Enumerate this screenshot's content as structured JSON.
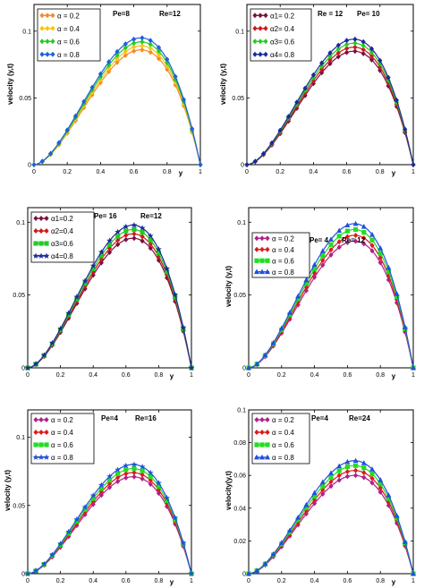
{
  "chart_data": [
    {
      "type": "line",
      "ylabel": "velocity (y,t)",
      "xlabel": "y",
      "params": [
        "Pe=8",
        "Re=12"
      ],
      "xlim": [
        0,
        1
      ],
      "ylim": [
        0,
        0.12
      ],
      "xticks": [
        0,
        0.2,
        0.4,
        0.6,
        0.8,
        1
      ],
      "xtick_labels": [
        "0",
        "0.2",
        "0.4",
        "0.6",
        "0.8",
        "1"
      ],
      "yticks": [
        0,
        0.05,
        0.1
      ],
      "ytick_labels": [
        "0",
        "0.05",
        "0.1"
      ],
      "legend_position": "top-left",
      "grid": false,
      "series": [
        {
          "name": "α = 0.2",
          "color": "#f28c28",
          "marker": "diamond",
          "peak": 0.086
        },
        {
          "name": "α = 0.4",
          "color": "#f5c518",
          "marker": "diamond",
          "peak": 0.089
        },
        {
          "name": "α = 0.6",
          "color": "#22cc22",
          "marker": "diamond",
          "peak": 0.092
        },
        {
          "name": "α = 0.8",
          "color": "#2060dd",
          "marker": "diamond",
          "peak": 0.095
        }
      ]
    },
    {
      "type": "line",
      "ylabel": "velocity (y,t)",
      "xlabel": "y",
      "params": [
        "Re = 12",
        "Pe= 10"
      ],
      "xlim": [
        0,
        1
      ],
      "ylim": [
        0,
        0.12
      ],
      "xticks": [
        0,
        0.2,
        0.4,
        0.6,
        0.8,
        1
      ],
      "xtick_labels": [
        "0",
        "0.2",
        "0.4",
        "0.6",
        "0.8",
        "1"
      ],
      "yticks": [
        0,
        0.05,
        0.1
      ],
      "ytick_labels": [
        "0",
        "0.05",
        "0.1"
      ],
      "legend_position": "top-left",
      "grid": false,
      "series": [
        {
          "name": "α1= 0.2",
          "color": "#7a1040",
          "marker": "diamond",
          "peak": 0.085
        },
        {
          "name": "α2= 0.4",
          "color": "#cc1a1a",
          "marker": "diamond",
          "peak": 0.088
        },
        {
          "name": "α3= 0.6",
          "color": "#22cc22",
          "marker": "diamond",
          "peak": 0.091
        },
        {
          "name": "α4= 0.8",
          "color": "#1a2a99",
          "marker": "diamond",
          "peak": 0.094
        }
      ]
    },
    {
      "type": "line",
      "ylabel": "",
      "xlabel": "y",
      "params": [
        "Pe= 16",
        "Re=12"
      ],
      "xlim": [
        0,
        1
      ],
      "ylim": [
        0,
        0.11
      ],
      "xticks": [
        0,
        0.2,
        0.4,
        0.6,
        0.8,
        1
      ],
      "xtick_labels": [
        "0",
        "0.2",
        "0.4",
        "0.6",
        "0.8",
        "1"
      ],
      "yticks": [
        0,
        0.05,
        0.1
      ],
      "ytick_labels": [
        "0",
        "0.05",
        "0.1"
      ],
      "legend_position": "top-left",
      "grid": false,
      "series": [
        {
          "name": "α1=0.2",
          "color": "#7a1040",
          "marker": "diamond",
          "peak": 0.089
        },
        {
          "name": "α2=0.4",
          "color": "#cc1a1a",
          "marker": "diamond",
          "peak": 0.092
        },
        {
          "name": "α3=0.6",
          "color": "#22cc22",
          "marker": "square",
          "peak": 0.095
        },
        {
          "name": "α4=0.8",
          "color": "#1a2a99",
          "marker": "star",
          "peak": 0.098
        }
      ]
    },
    {
      "type": "line",
      "ylabel": "velocity (y,t)",
      "xlabel": "y",
      "params": [
        "Pe= 4",
        "Re= 12"
      ],
      "xlim": [
        0,
        1
      ],
      "ylim": [
        0,
        0.11
      ],
      "xticks": [
        0,
        0.2,
        0.4,
        0.6,
        0.8,
        1
      ],
      "xtick_labels": [
        "0",
        "0.2",
        "0.4",
        "0.6",
        "0.8",
        "1"
      ],
      "yticks": [
        0,
        0.05,
        0.1
      ],
      "ytick_labels": [
        "0",
        "0.05",
        "0.1"
      ],
      "legend_position": "top-left",
      "grid": false,
      "series": [
        {
          "name": "α = 0.2",
          "color": "#b0208a",
          "marker": "diamond",
          "peak": 0.087
        },
        {
          "name": "α = 0.4",
          "color": "#dd1a1a",
          "marker": "diamond",
          "peak": 0.091
        },
        {
          "name": "α = 0.6",
          "color": "#22dd22",
          "marker": "square",
          "peak": 0.095
        },
        {
          "name": "α = 0.8",
          "color": "#2050e0",
          "marker": "triangle",
          "peak": 0.099
        }
      ]
    },
    {
      "type": "line",
      "ylabel": "velocity (y,t)",
      "xlabel": "y",
      "params": [
        "Pe=4",
        "Re=16"
      ],
      "xlim": [
        0,
        1
      ],
      "ylim": [
        0,
        0.12
      ],
      "xticks": [
        0,
        0.2,
        0.4,
        0.6,
        0.8,
        1
      ],
      "xtick_labels": [
        "0",
        "0.2",
        "0.4",
        "0.6",
        "0.8",
        "1"
      ],
      "yticks": [
        0,
        0.05,
        0.1
      ],
      "ytick_labels": [
        "0",
        "0.05",
        "0.1"
      ],
      "legend_position": "top-left",
      "grid": false,
      "series": [
        {
          "name": "α = 0.2",
          "color": "#b0208a",
          "marker": "diamond",
          "peak": 0.071
        },
        {
          "name": "α = 0.4",
          "color": "#dd1a1a",
          "marker": "diamond",
          "peak": 0.074
        },
        {
          "name": "α = 0.6",
          "color": "#22dd22",
          "marker": "square",
          "peak": 0.077
        },
        {
          "name": "α = 0.8",
          "color": "#2050e0",
          "marker": "star",
          "peak": 0.08
        }
      ]
    },
    {
      "type": "line",
      "ylabel": "velocity(y,t)",
      "xlabel": "y",
      "params": [
        "Pe=4",
        "Re=24"
      ],
      "xlim": [
        0,
        1
      ],
      "ylim": [
        0,
        0.1
      ],
      "xticks": [
        0,
        0.2,
        0.4,
        0.6,
        0.8,
        1
      ],
      "xtick_labels": [
        "0",
        "0.2",
        "0.4",
        "0.6",
        "0.8",
        "1"
      ],
      "yticks": [
        0,
        0.02,
        0.04,
        0.06,
        0.08,
        0.1
      ],
      "ytick_labels": [
        "0",
        "0.02",
        "0.04",
        "0.06",
        "0.08",
        "0.1"
      ],
      "legend_position": "top-left",
      "grid": false,
      "series": [
        {
          "name": "α = 0.2",
          "color": "#b0208a",
          "marker": "diamond",
          "peak": 0.06
        },
        {
          "name": "α = 0.4",
          "color": "#dd1a1a",
          "marker": "diamond",
          "peak": 0.063
        },
        {
          "name": "α = 0.6",
          "color": "#22dd22",
          "marker": "square",
          "peak": 0.066
        },
        {
          "name": "α = 0.8",
          "color": "#2050e0",
          "marker": "triangle",
          "peak": 0.069
        }
      ]
    }
  ]
}
